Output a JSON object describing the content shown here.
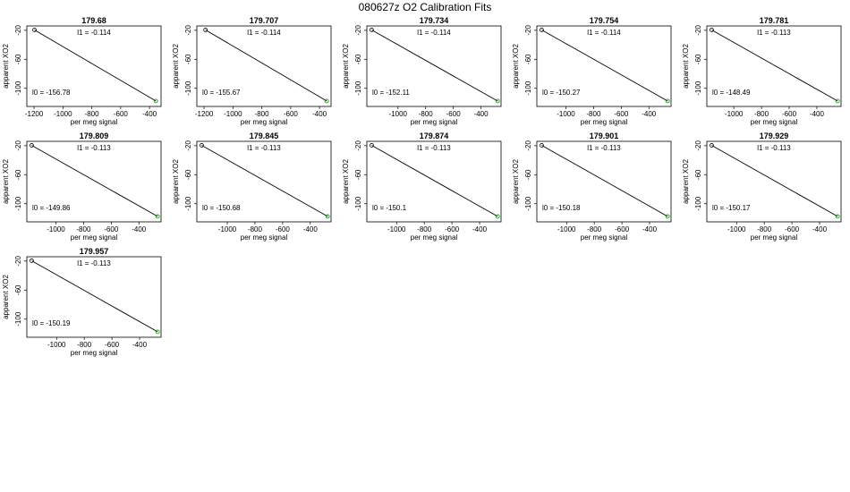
{
  "figure": {
    "title": "080627z   O2 Calibration Fits"
  },
  "colors": {
    "start_point": "#000000",
    "end_point": "#1f9d1f",
    "fit_line": "#000000"
  },
  "chart_data": [
    {
      "type": "scatter",
      "title": "179.68",
      "xlabel": "per meg signal",
      "ylabel": "apparent XO2",
      "xticks": [
        "-1200",
        "-1000",
        "-800",
        "-600",
        "-400"
      ],
      "yticks": [
        "-20",
        "-60",
        "-100"
      ],
      "xlim": [
        -1250,
        -320
      ],
      "ylim": [
        -125,
        -14
      ],
      "points": [
        {
          "x": -1197,
          "y": -19.5
        },
        {
          "x": -356,
          "y": -117.5
        }
      ],
      "l1_label": "l1 =  -0.114",
      "l0_label": "l0 =  -156.78"
    },
    {
      "type": "scatter",
      "title": "179.707",
      "xlabel": "per meg signal",
      "ylabel": "apparent XO2",
      "xticks": [
        "-1200",
        "-1000",
        "-800",
        "-600",
        "-400"
      ],
      "yticks": [
        "-20",
        "-60",
        "-100"
      ],
      "xlim": [
        -1250,
        -320
      ],
      "ylim": [
        -125,
        -14
      ],
      "points": [
        {
          "x": -1190,
          "y": -19.5
        },
        {
          "x": -350,
          "y": -117.5
        }
      ],
      "l1_label": "l1 =  -0.114",
      "l0_label": "l0 =  -155.67"
    },
    {
      "type": "scatter",
      "title": "179.734",
      "xlabel": "per meg signal",
      "ylabel": "apparent XO2",
      "xticks": [
        "-1000",
        "-800",
        "-600",
        "-400"
      ],
      "yticks": [
        "-20",
        "-60",
        "-100"
      ],
      "xlim": [
        -1225,
        -255
      ],
      "ylim": [
        -125,
        -14
      ],
      "points": [
        {
          "x": -1190,
          "y": -19.5
        },
        {
          "x": -280,
          "y": -117.5
        }
      ],
      "l1_label": "l1 =  -0.114",
      "l0_label": "l0 =  -152.11"
    },
    {
      "type": "scatter",
      "title": "179.754",
      "xlabel": "per meg signal",
      "ylabel": "apparent XO2",
      "xticks": [
        "-1000",
        "-800",
        "-600",
        "-400"
      ],
      "yticks": [
        "-20",
        "-60",
        "-100"
      ],
      "xlim": [
        -1210,
        -240
      ],
      "ylim": [
        -125,
        -14
      ],
      "points": [
        {
          "x": -1175,
          "y": -19.5
        },
        {
          "x": -265,
          "y": -117.5
        }
      ],
      "l1_label": "l1 =  -0.114",
      "l0_label": "l0 =  -150.27"
    },
    {
      "type": "scatter",
      "title": "179.781",
      "xlabel": "per meg signal",
      "ylabel": "apparent XO2",
      "xticks": [
        "-1000",
        "-800",
        "-600",
        "-400"
      ],
      "yticks": [
        "-20",
        "-60",
        "-100"
      ],
      "xlim": [
        -1195,
        -225
      ],
      "ylim": [
        -125,
        -14
      ],
      "points": [
        {
          "x": -1160,
          "y": -19.5
        },
        {
          "x": -250,
          "y": -117.5
        }
      ],
      "l1_label": "l1 =  -0.113",
      "l0_label": "l0 =  -148.49"
    },
    {
      "type": "scatter",
      "title": "179.809",
      "xlabel": "per meg signal",
      "ylabel": "apparent XO2",
      "xticks": [
        "-1000",
        "-800",
        "-600",
        "-400"
      ],
      "yticks": [
        "-20",
        "-60",
        "-100"
      ],
      "xlim": [
        -1210,
        -240
      ],
      "ylim": [
        -125,
        -14
      ],
      "points": [
        {
          "x": -1175,
          "y": -19.5
        },
        {
          "x": -265,
          "y": -117.5
        }
      ],
      "l1_label": "l1 =  -0.113",
      "l0_label": "l0 =  -149.86"
    },
    {
      "type": "scatter",
      "title": "179.845",
      "xlabel": "per meg signal",
      "ylabel": "apparent XO2",
      "xticks": [
        "-1000",
        "-800",
        "-600",
        "-400"
      ],
      "yticks": [
        "-20",
        "-60",
        "-100"
      ],
      "xlim": [
        -1220,
        -250
      ],
      "ylim": [
        -125,
        -14
      ],
      "points": [
        {
          "x": -1185,
          "y": -19.5
        },
        {
          "x": -275,
          "y": -117.5
        }
      ],
      "l1_label": "l1 =  -0.113",
      "l0_label": "l0 =  -150.68"
    },
    {
      "type": "scatter",
      "title": "179.874",
      "xlabel": "per meg signal",
      "ylabel": "apparent XO2",
      "xticks": [
        "-1000",
        "-800",
        "-600",
        "-400"
      ],
      "yticks": [
        "-20",
        "-60",
        "-100"
      ],
      "xlim": [
        -1215,
        -245
      ],
      "ylim": [
        -125,
        -14
      ],
      "points": [
        {
          "x": -1180,
          "y": -19.5
        },
        {
          "x": -270,
          "y": -117.5
        }
      ],
      "l1_label": "l1 =  -0.113",
      "l0_label": "l0 =  -150.1"
    },
    {
      "type": "scatter",
      "title": "179.901",
      "xlabel": "per meg signal",
      "ylabel": "apparent XO2",
      "xticks": [
        "-1000",
        "-800",
        "-600",
        "-400"
      ],
      "yticks": [
        "-20",
        "-60",
        "-100"
      ],
      "xlim": [
        -1215,
        -245
      ],
      "ylim": [
        -125,
        -14
      ],
      "points": [
        {
          "x": -1180,
          "y": -19.5
        },
        {
          "x": -270,
          "y": -117.5
        }
      ],
      "l1_label": "l1 =  -0.113",
      "l0_label": "l0 =  -150.18"
    },
    {
      "type": "scatter",
      "title": "179.929",
      "xlabel": "per meg signal",
      "ylabel": "apparent XO2",
      "xticks": [
        "-1000",
        "-800",
        "-600",
        "-400"
      ],
      "yticks": [
        "-20",
        "-60",
        "-100"
      ],
      "xlim": [
        -1215,
        -245
      ],
      "ylim": [
        -125,
        -14
      ],
      "points": [
        {
          "x": -1180,
          "y": -19.5
        },
        {
          "x": -270,
          "y": -117.5
        }
      ],
      "l1_label": "l1 =  -0.113",
      "l0_label": "l0 =  -150.17"
    },
    {
      "type": "scatter",
      "title": "179.957",
      "xlabel": "per meg signal",
      "ylabel": "apparent XO2",
      "xticks": [
        "-1000",
        "-800",
        "-600",
        "-400"
      ],
      "yticks": [
        "-20",
        "-60",
        "-100"
      ],
      "xlim": [
        -1215,
        -245
      ],
      "ylim": [
        -125,
        -14
      ],
      "points": [
        {
          "x": -1180,
          "y": -19.5
        },
        {
          "x": -270,
          "y": -117.5
        }
      ],
      "l1_label": "l1 =  -0.113",
      "l0_label": "l0 =  -150.19"
    }
  ]
}
